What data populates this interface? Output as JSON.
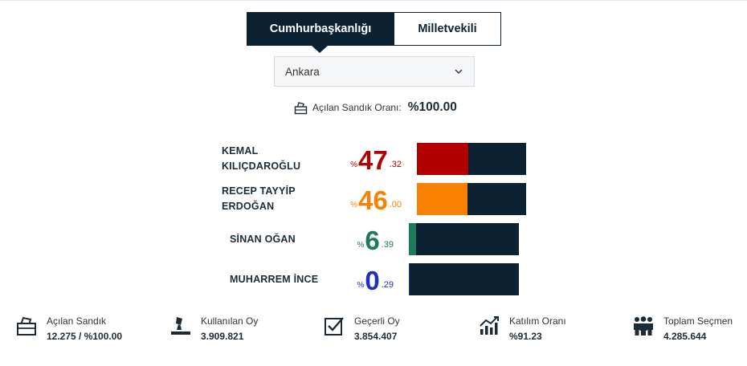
{
  "tabs": [
    {
      "label": "Cumhurbaşkanlığı",
      "active": true
    },
    {
      "label": "Milletvekili",
      "active": false
    }
  ],
  "city_select": {
    "value": "Ankara"
  },
  "open_ballot": {
    "label": "Açılan Sandık Oranı:",
    "value": "%100.00"
  },
  "candidates": [
    {
      "name_line1": "KEMAL",
      "name_line2": "KILIÇDAROĞLU",
      "pct_sign": "%",
      "pct_int": "47",
      "pct_dec": ".32",
      "share": 47.32,
      "color": "#b20000"
    },
    {
      "name_line1": "RECEP TAYYİP",
      "name_line2": "ERDOĞAN",
      "pct_sign": "%",
      "pct_int": "46",
      "pct_dec": ".00",
      "share": 46.0,
      "color": "#f98000"
    },
    {
      "name_line1": "SİNAN OĞAN",
      "name_line2": "",
      "pct_sign": "%",
      "pct_int": "6",
      "pct_dec": ".39",
      "share": 6.39,
      "color": "#1a7a5a"
    },
    {
      "name_line1": "MUHARREM İNCE",
      "name_line2": "",
      "pct_sign": "%",
      "pct_int": "0",
      "pct_dec": ".29",
      "share": 0.29,
      "color": "#1c2fc9"
    }
  ],
  "stats": [
    {
      "label": "Açılan Sandık",
      "value": "12.275 / %100.00",
      "icon": "ballot-box-icon"
    },
    {
      "label": "Kullanılan Oy",
      "value": "3.909.821",
      "icon": "voting-hand-icon"
    },
    {
      "label": "Geçerli Oy",
      "value": "3.854.407",
      "icon": "checkbox-icon"
    },
    {
      "label": "Katılım Oranı",
      "value": "%91.23",
      "icon": "chart-growth-icon"
    },
    {
      "label": "Toplam Seçmen",
      "value": "4.285.644",
      "icon": "people-group-icon"
    }
  ]
}
